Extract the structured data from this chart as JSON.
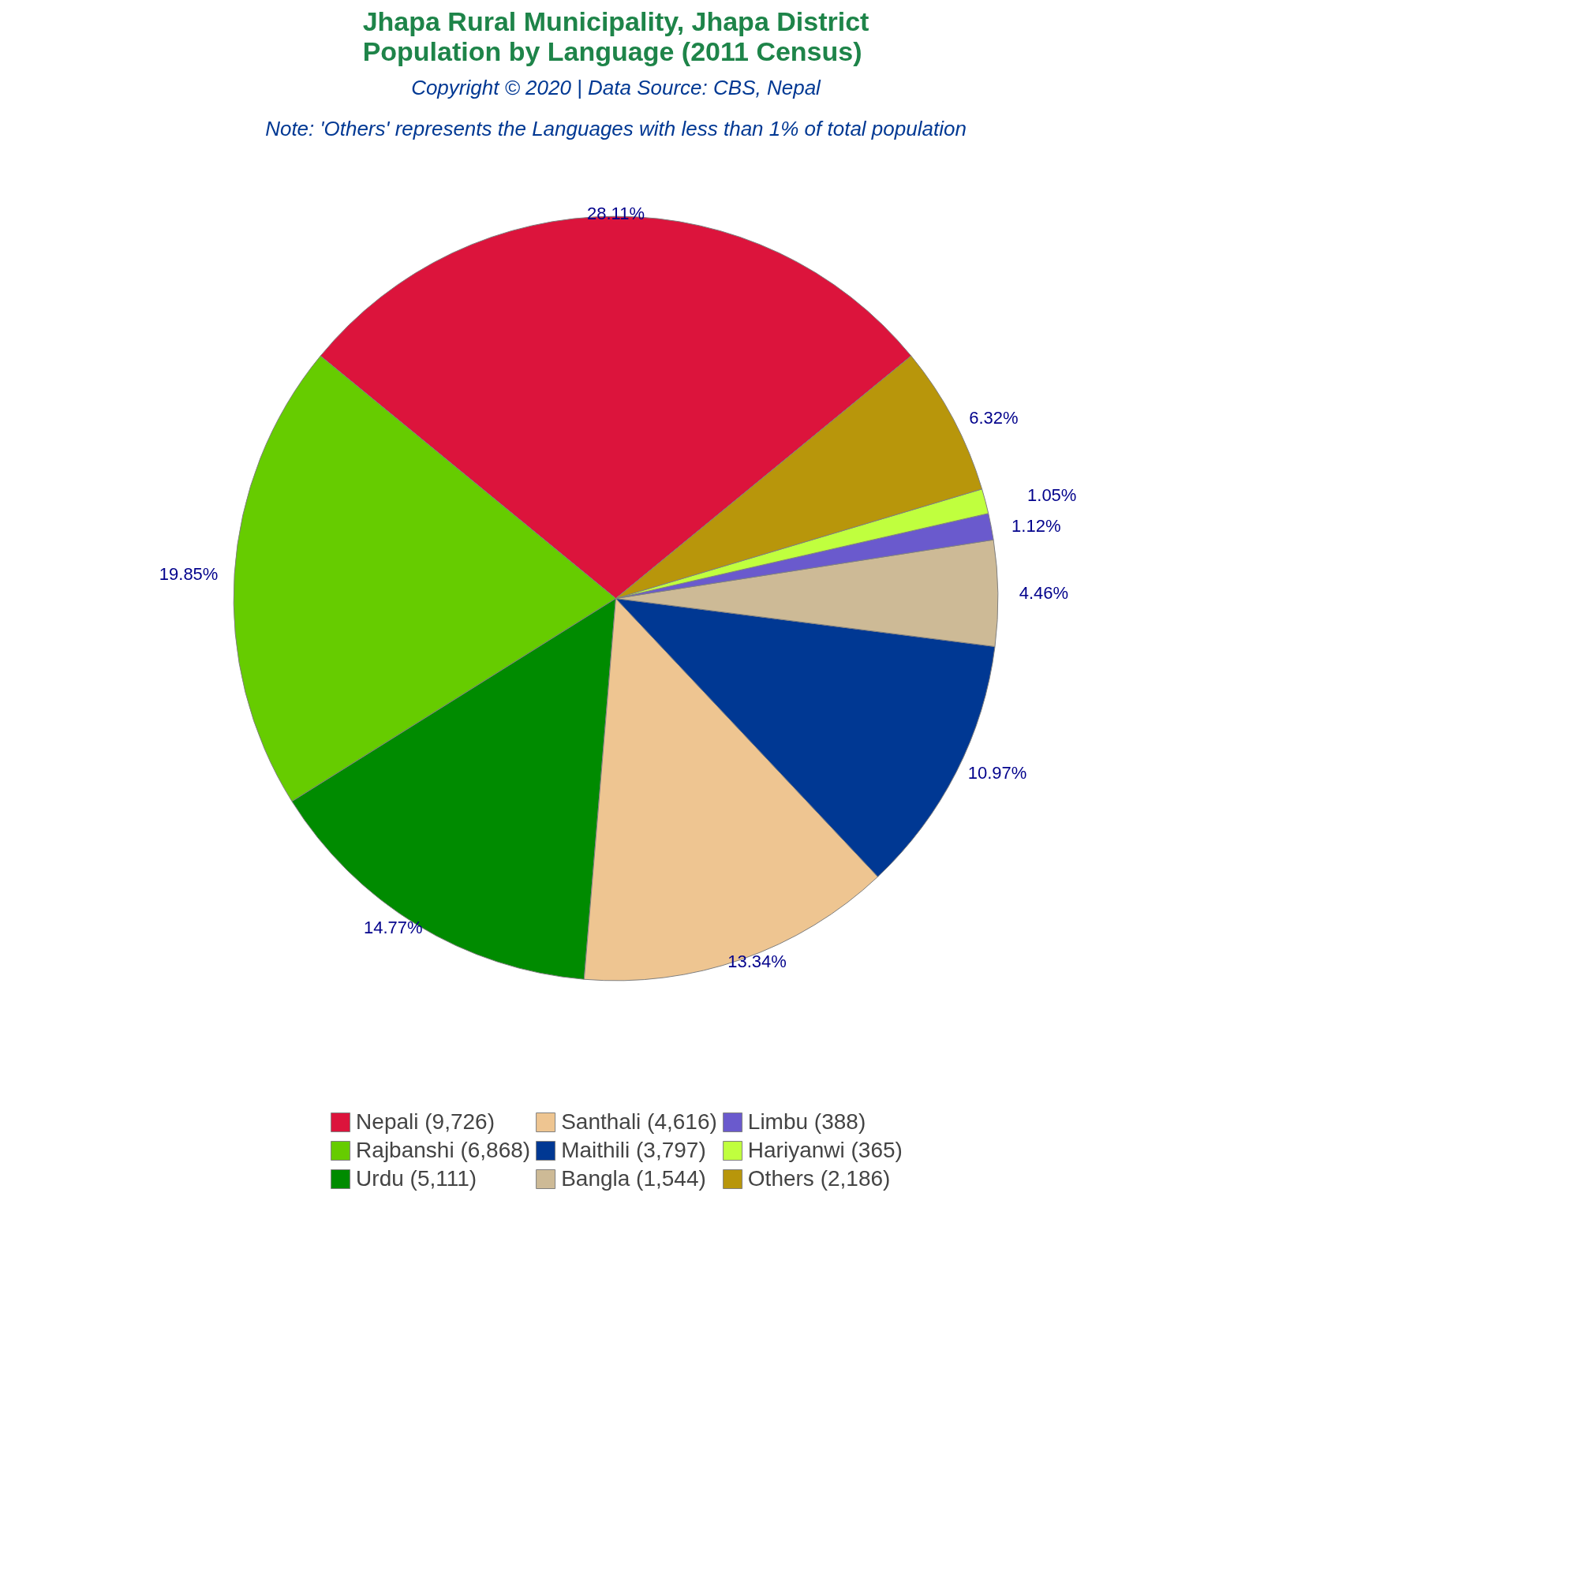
{
  "chart_data": {
    "type": "pie",
    "title": "Jhapa Rural Municipality, Jhapa District\nPopulation by Language (2011 Census)",
    "subtitle": "Copyright © 2020 | Data Source: CBS, Nepal",
    "annotations": [
      "Note: 'Others' represents the Languages with less than 1% of total population"
    ],
    "categories": [
      "Nepali (9,726)",
      "Rajbanshi (6,868)",
      "Urdu (5,111)",
      "Santhali (4,616)",
      "Maithili (3,797)",
      "Bangla (1,544)",
      "Limbu (388)",
      "Hariyanwi (365)",
      "Others (2,186)"
    ],
    "values": [
      28.11,
      19.85,
      14.77,
      13.34,
      10.97,
      4.46,
      1.12,
      1.05,
      6.32
    ],
    "colors": [
      "#dc143c",
      "#66cc00",
      "#008b00",
      "#eec591",
      "#003893",
      "#cdba96",
      "#6a5acd",
      "#c0ff3e",
      "#b8960b"
    ],
    "value_labels": [
      "28.11%",
      "19.85%",
      "14.77%",
      "13.34%",
      "10.97%",
      "4.46%",
      "1.12%",
      "1.05%",
      "6.32%"
    ],
    "legend": "bottom"
  }
}
